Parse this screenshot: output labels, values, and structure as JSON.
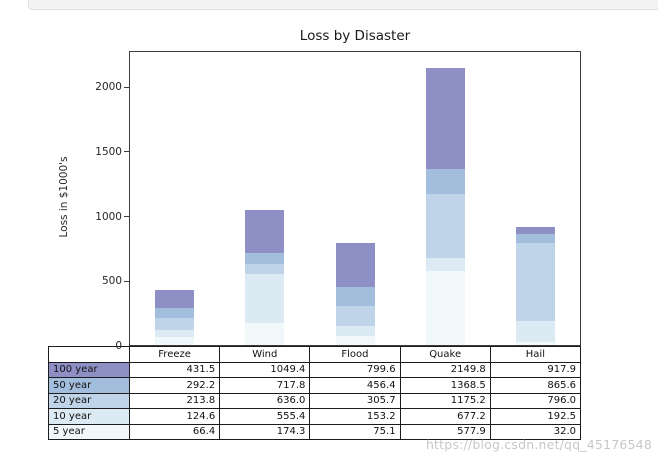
{
  "page": {
    "watermark": "https://blog.csdn.net/qq_45176548"
  },
  "chart_data": {
    "type": "bar",
    "subtype": "overlaid-bars-each-series-from-zero-tallest-behind",
    "title": "Loss by Disaster",
    "xlabel": "",
    "ylabel": "Loss in $1000's",
    "categories": [
      "Freeze",
      "Wind",
      "Flood",
      "Quake",
      "Hail"
    ],
    "series": [
      {
        "name": "100 year",
        "color": "#8e90c5",
        "values": [
          431.5,
          1049.4,
          799.6,
          2149.8,
          917.9
        ]
      },
      {
        "name": "50 year",
        "color": "#a3bddc",
        "values": [
          292.2,
          717.8,
          456.4,
          1368.5,
          865.6
        ]
      },
      {
        "name": "20 year",
        "color": "#bfd4e9",
        "values": [
          213.8,
          636.0,
          305.7,
          1175.2,
          796.0
        ]
      },
      {
        "name": "10 year",
        "color": "#dceaf3",
        "values": [
          124.6,
          555.4,
          153.2,
          677.2,
          192.5
        ]
      },
      {
        "name": "5 year",
        "color": "#f1f8fa",
        "values": [
          66.4,
          174.3,
          75.1,
          577.9,
          32.0
        ]
      }
    ],
    "yticks": [
      0,
      500,
      1000,
      1500,
      2000
    ],
    "ylim": [
      0,
      2280
    ],
    "grid": false,
    "legend": "table-row-label-swatches",
    "data_table_shown": true
  }
}
